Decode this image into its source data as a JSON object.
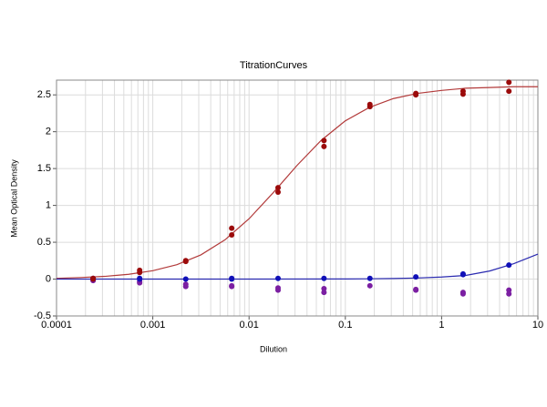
{
  "chart_data": {
    "type": "scatter",
    "title": "TitrationCurves",
    "xlabel": "Dilution",
    "ylabel": "Mean Optical Density",
    "xscale": "log",
    "xlim": [
      0.0001,
      10
    ],
    "ylim": [
      -0.5,
      2.7
    ],
    "grid": true,
    "xticks": [
      0.0001,
      0.001,
      0.01,
      0.1,
      1,
      10
    ],
    "xminorticks": [
      0.0002,
      0.0003,
      0.0004,
      0.0005,
      0.0006,
      0.0007,
      0.0008,
      0.0009,
      0.002,
      0.003,
      0.004,
      0.005,
      0.006,
      0.007,
      0.008,
      0.009,
      0.02,
      0.03,
      0.04,
      0.05,
      0.06,
      0.07,
      0.08,
      0.09,
      0.2,
      0.3,
      0.4,
      0.5,
      0.6,
      0.7,
      0.8,
      0.9,
      2,
      3,
      4,
      5,
      6,
      7,
      8,
      9
    ],
    "yticks": [
      -0.5,
      0,
      0.5,
      1,
      1.5,
      2,
      2.5
    ],
    "series": [
      {
        "mode": "line",
        "color": "#b23a3a",
        "x": [
          0.0001,
          0.000178,
          0.000316,
          0.000562,
          0.001,
          0.00178,
          0.00316,
          0.00562,
          0.01,
          0.0178,
          0.0316,
          0.0562,
          0.1,
          0.178,
          0.316,
          0.562,
          1,
          1.78,
          3.16,
          5.62,
          10
        ],
        "values": [
          0.01,
          0.021,
          0.037,
          0.065,
          0.114,
          0.196,
          0.329,
          0.533,
          0.819,
          1.172,
          1.545,
          1.883,
          2.148,
          2.33,
          2.45,
          2.52,
          2.56,
          2.59,
          2.6,
          2.61,
          2.61
        ]
      },
      {
        "mode": "line",
        "color": "#2a2ab0",
        "x": [
          0.0001,
          0.001,
          0.01,
          0.1,
          0.178,
          0.316,
          0.562,
          1,
          1.78,
          3.16,
          5.62,
          10
        ],
        "values": [
          0,
          0,
          0,
          0.002,
          0.004,
          0.008,
          0.015,
          0.028,
          0.05,
          0.11,
          0.21,
          0.34
        ]
      },
      {
        "mode": "markers",
        "color": "#7b1fa2",
        "x": [
          0.00024,
          0.00024,
          0.00073,
          0.00073,
          0.0022,
          0.0022,
          0.0066,
          0.0066,
          0.02,
          0.02,
          0.06,
          0.06,
          0.18,
          0.54,
          0.54,
          1.67,
          1.67,
          5.0,
          5.0
        ],
        "values": [
          -0.01,
          -0.02,
          -0.03,
          -0.05,
          -0.07,
          -0.1,
          -0.09,
          -0.1,
          -0.12,
          -0.15,
          -0.13,
          -0.18,
          -0.09,
          -0.14,
          -0.15,
          -0.18,
          -0.2,
          -0.15,
          -0.2
        ]
      },
      {
        "mode": "markers",
        "color": "#1010b8",
        "x": [
          0.00024,
          0.00024,
          0.00073,
          0.00073,
          0.0022,
          0.0066,
          0.0066,
          0.02,
          0.06,
          0.18,
          0.54,
          1.67,
          1.67,
          5.0
        ],
        "values": [
          0.01,
          0.0,
          0.0,
          0.01,
          0.0,
          0.01,
          0.0,
          0.01,
          0.01,
          0.01,
          0.03,
          0.07,
          0.06,
          0.19
        ]
      },
      {
        "mode": "markers",
        "color": "#9b0a0a",
        "x": [
          0.00024,
          0.00024,
          0.00073,
          0.00073,
          0.0022,
          0.0022,
          0.0066,
          0.0066,
          0.02,
          0.02,
          0.06,
          0.06,
          0.18,
          0.18,
          0.54,
          0.54,
          1.67,
          1.67,
          5.0,
          5.0
        ],
        "values": [
          0.01,
          0.0,
          0.12,
          0.09,
          0.25,
          0.24,
          0.69,
          0.6,
          1.24,
          1.18,
          1.88,
          1.8,
          2.37,
          2.34,
          2.52,
          2.5,
          2.55,
          2.51,
          2.67,
          2.55
        ]
      }
    ]
  }
}
